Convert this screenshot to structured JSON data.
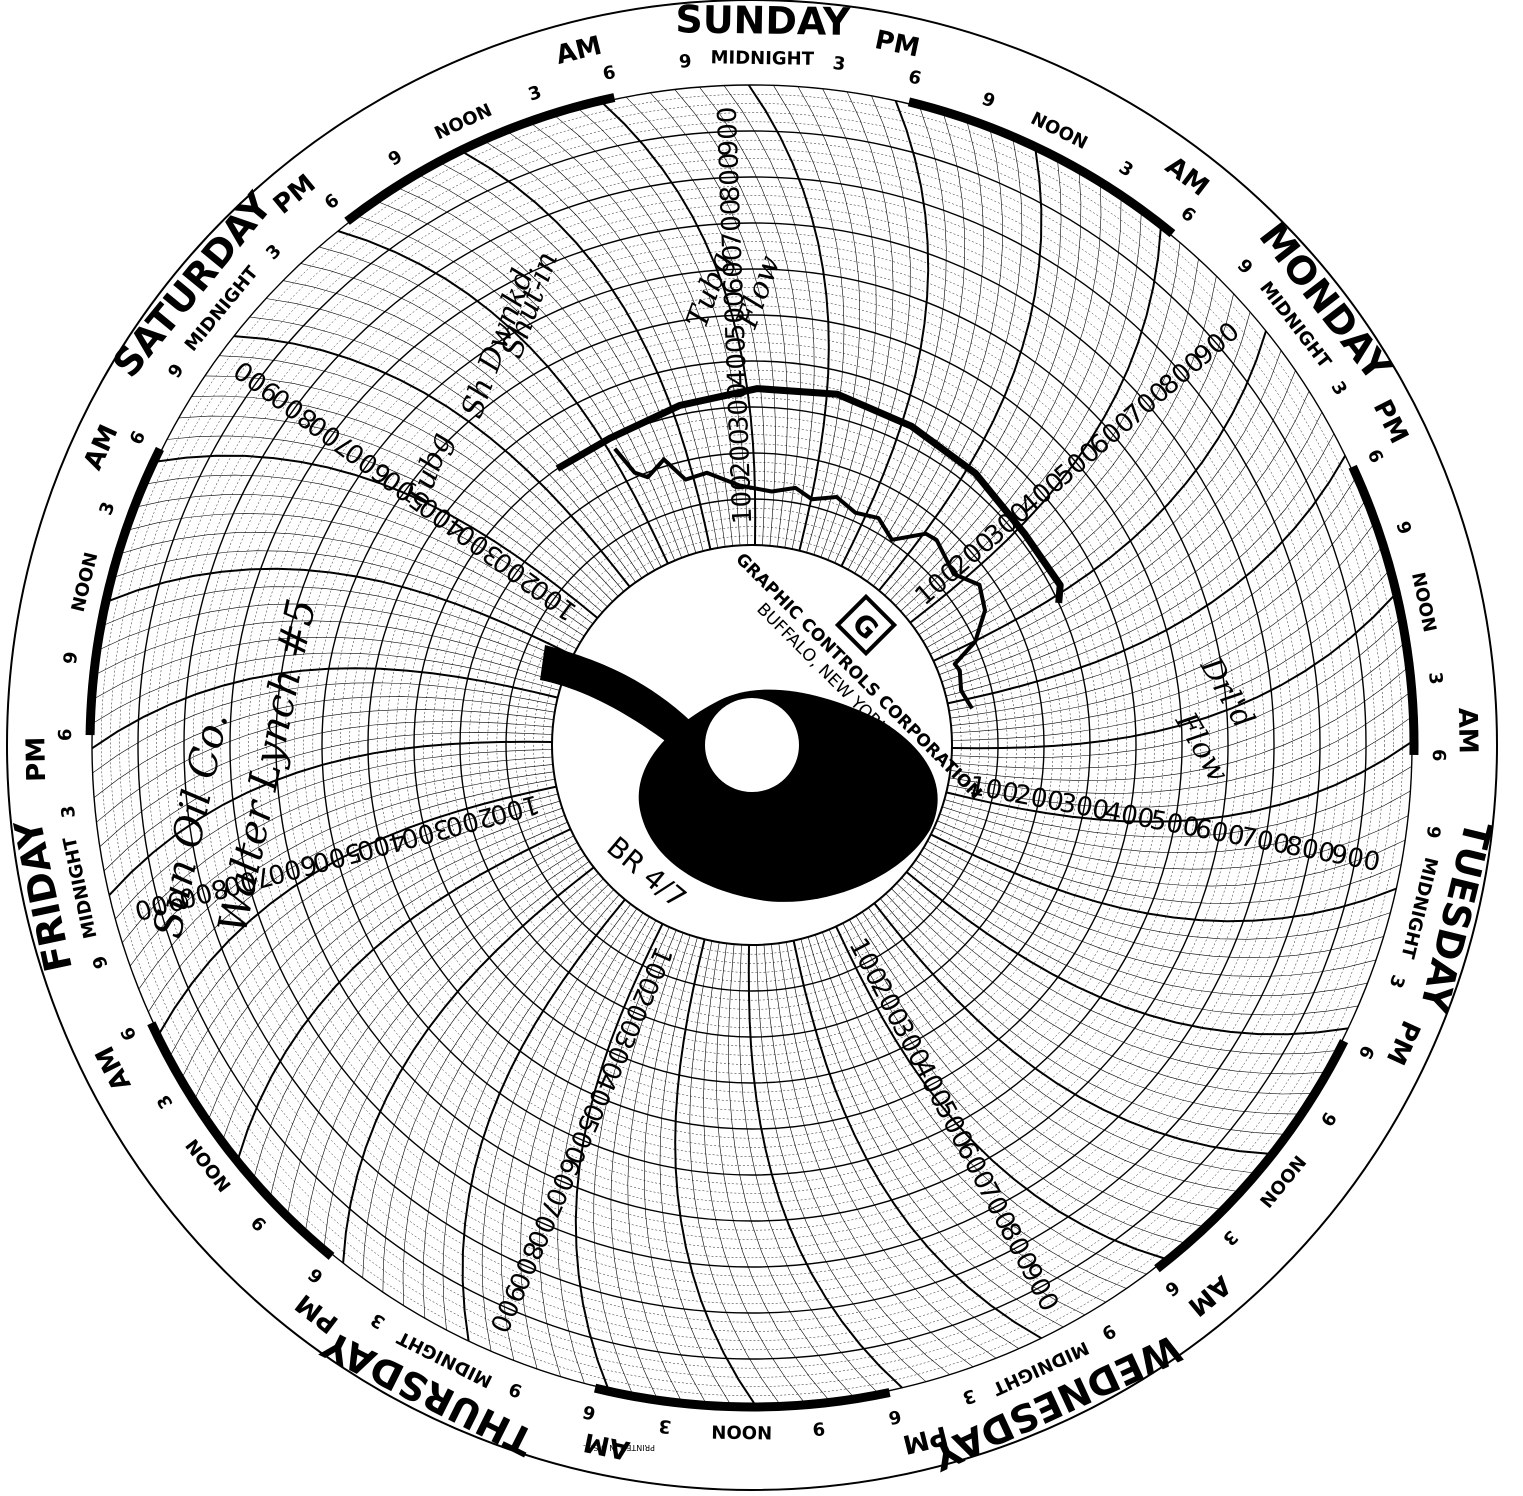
{
  "chart_data": {
    "type": "circular-chart-recorder",
    "days": [
      "SUNDAY",
      "MONDAY",
      "TUESDAY",
      "WEDNESDAY",
      "THURSDAY",
      "FRIDAY",
      "SATURDAY"
    ],
    "time_marks": [
      "6",
      "9",
      "MIDNIGHT",
      "3",
      "6",
      "9",
      "NOON",
      "3"
    ],
    "ampm": [
      "AM",
      "PM"
    ],
    "scale": [
      "100",
      "200",
      "300",
      "400",
      "500",
      "600",
      "700",
      "800",
      "900"
    ],
    "manufacturer": "GRAPHIC CONTROLS CORPORATION",
    "city": "BUFFALO, NEW YORK",
    "chart_number": "BR 4/7",
    "printed": "PRINTED IN U.S.A.",
    "annotations": {
      "well": "Sun Oil Co.",
      "lease": "Walter Lynch #5",
      "note_friday": [
        "Tubg",
        "Sh Dwnkd",
        "Shut-in"
      ],
      "note_saturday": [
        "Tubg",
        "Flow"
      ],
      "note_monday": [
        "Drl'd",
        "Flow"
      ]
    },
    "trace": [
      {
        "day": 6.75,
        "value": 275
      },
      {
        "day": 6.78,
        "value": 210
      },
      {
        "day": 6.82,
        "value": 190
      },
      {
        "day": 6.9,
        "value": 215
      },
      {
        "day": 6.96,
        "value": 160
      },
      {
        "day": 7.05,
        "value": 165
      },
      {
        "day": 7.18,
        "value": 130
      },
      {
        "day": 7.32,
        "value": 118
      },
      {
        "day": 7.42,
        "value": 132
      },
      {
        "day": 7.5,
        "value": 115
      },
      {
        "day": 7.6,
        "value": 135
      },
      {
        "day": 7.7,
        "value": 118
      },
      {
        "day": 7.8,
        "value": 130
      },
      {
        "day": 7.9,
        "value": 105
      },
      {
        "day": 8.0,
        "value": 160
      },
      {
        "day": 8.05,
        "value": 165
      },
      {
        "day": 8.2,
        "value": 140
      },
      {
        "day": 8.3,
        "value": 170
      },
      {
        "day": 8.4,
        "value": 150
      },
      {
        "day": 8.5,
        "value": 100
      },
      {
        "day": 8.56,
        "value": 40
      },
      {
        "day": 8.6,
        "value": 45
      },
      {
        "day": 8.7,
        "value": 35
      },
      {
        "day": 8.8,
        "value": 50
      }
    ],
    "trace2": [
      {
        "day": 6.55,
        "value": 300
      },
      {
        "day": 6.75,
        "value": 300
      },
      {
        "day": 7.0,
        "value": 320
      },
      {
        "day": 7.25,
        "value": 340
      },
      {
        "day": 7.5,
        "value": 350
      },
      {
        "day": 7.75,
        "value": 340
      },
      {
        "day": 8.0,
        "value": 330
      },
      {
        "day": 8.25,
        "value": 315
      },
      {
        "day": 8.45,
        "value": 320
      },
      {
        "day": 8.5,
        "value": 300
      }
    ]
  }
}
